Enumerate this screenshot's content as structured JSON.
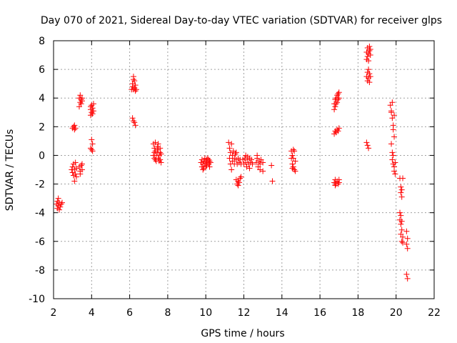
{
  "chart_data": {
    "type": "scatter",
    "title": "Day 070 of 2021, Sidereal Day-to-day VTEC variation (SDTVAR) for receiver glps",
    "xlabel": "GPS time / hours",
    "ylabel": "SDTVAR / TECUs",
    "xlim": [
      2,
      22
    ],
    "ylim": [
      -10,
      8
    ],
    "xticks": [
      "2",
      "4",
      "6",
      "8",
      "10",
      "12",
      "14",
      "16",
      "18",
      "20",
      "22"
    ],
    "yticks": [
      "8",
      "6",
      "4",
      "2",
      "0",
      "-2",
      "-4",
      "-6",
      "-8",
      "-10"
    ],
    "grid": true,
    "marker": "+",
    "color": "#ff0000",
    "series": [
      {
        "name": "SDTVAR",
        "points": [
          [
            2.15,
            -3.4
          ],
          [
            2.2,
            -3.2
          ],
          [
            2.2,
            -3.7
          ],
          [
            2.25,
            -3.5
          ],
          [
            2.3,
            -3.3
          ],
          [
            2.3,
            -3.8
          ],
          [
            2.35,
            -3.6
          ],
          [
            2.4,
            -3.4
          ],
          [
            2.45,
            -3.3
          ],
          [
            2.25,
            -3.0
          ],
          [
            2.95,
            -1.0
          ],
          [
            3.0,
            -1.2
          ],
          [
            3.0,
            -0.8
          ],
          [
            3.05,
            -1.4
          ],
          [
            3.05,
            -0.6
          ],
          [
            3.1,
            -1.8
          ],
          [
            3.1,
            -1.0
          ],
          [
            3.15,
            -0.5
          ],
          [
            3.15,
            -1.3
          ],
          [
            3.2,
            -0.9
          ],
          [
            3.2,
            -1.5
          ],
          [
            3.0,
            1.9
          ],
          [
            3.05,
            2.0
          ],
          [
            3.1,
            2.1
          ],
          [
            3.15,
            1.9
          ],
          [
            3.1,
            1.8
          ],
          [
            3.35,
            -0.8
          ],
          [
            3.4,
            -1.1
          ],
          [
            3.45,
            -0.7
          ],
          [
            3.5,
            -0.6
          ],
          [
            3.4,
            -1.3
          ],
          [
            3.5,
            -1.0
          ],
          [
            3.35,
            3.4
          ],
          [
            3.35,
            4.0
          ],
          [
            3.4,
            3.7
          ],
          [
            3.4,
            4.2
          ],
          [
            3.45,
            3.6
          ],
          [
            3.45,
            3.9
          ],
          [
            3.5,
            4.0
          ],
          [
            3.5,
            3.8
          ],
          [
            3.95,
            0.5
          ],
          [
            4.0,
            0.4
          ],
          [
            4.05,
            0.3
          ],
          [
            4.05,
            0.8
          ],
          [
            4.0,
            1.1
          ],
          [
            3.95,
            3.2
          ],
          [
            3.95,
            2.8
          ],
          [
            4.0,
            3.5
          ],
          [
            4.0,
            3.0
          ],
          [
            4.05,
            3.3
          ],
          [
            4.05,
            2.9
          ],
          [
            4.1,
            3.1
          ],
          [
            4.1,
            3.6
          ],
          [
            3.95,
            3.4
          ],
          [
            6.1,
            4.6
          ],
          [
            6.15,
            5.0
          ],
          [
            6.15,
            4.8
          ],
          [
            6.2,
            5.3
          ],
          [
            6.2,
            4.6
          ],
          [
            6.25,
            5.2
          ],
          [
            6.25,
            4.7
          ],
          [
            6.3,
            4.9
          ],
          [
            6.3,
            4.5
          ],
          [
            6.35,
            4.6
          ],
          [
            6.2,
            5.5
          ],
          [
            6.15,
            2.6
          ],
          [
            6.2,
            2.4
          ],
          [
            6.25,
            2.3
          ],
          [
            6.3,
            2.1
          ],
          [
            7.25,
            0.8
          ],
          [
            7.3,
            0.5
          ],
          [
            7.3,
            -0.2
          ],
          [
            7.35,
            0.3
          ],
          [
            7.35,
            0.9
          ],
          [
            7.4,
            0.0
          ],
          [
            7.4,
            -0.4
          ],
          [
            7.45,
            0.6
          ],
          [
            7.45,
            0.2
          ],
          [
            7.5,
            -0.2
          ],
          [
            7.5,
            0.4
          ],
          [
            7.55,
            0.0
          ],
          [
            7.55,
            -0.4
          ],
          [
            7.6,
            0.2
          ],
          [
            7.6,
            -0.3
          ],
          [
            7.65,
            0.1
          ],
          [
            7.65,
            -0.5
          ],
          [
            7.3,
            0.2
          ],
          [
            7.35,
            -0.3
          ],
          [
            7.5,
            0.8
          ],
          [
            7.25,
            0.0
          ],
          [
            7.6,
            0.5
          ],
          [
            9.75,
            -0.5
          ],
          [
            9.8,
            -0.8
          ],
          [
            9.8,
            -0.3
          ],
          [
            9.85,
            -1.0
          ],
          [
            9.85,
            -0.6
          ],
          [
            9.9,
            -0.4
          ],
          [
            9.9,
            -0.9
          ],
          [
            9.95,
            -0.2
          ],
          [
            9.95,
            -0.6
          ],
          [
            10.0,
            -0.4
          ],
          [
            10.0,
            -0.8
          ],
          [
            10.05,
            -0.3
          ],
          [
            10.05,
            -0.7
          ],
          [
            10.1,
            -0.5
          ],
          [
            10.1,
            -0.2
          ],
          [
            10.15,
            -0.6
          ],
          [
            10.15,
            -0.3
          ],
          [
            10.2,
            -0.4
          ],
          [
            10.2,
            -0.8
          ],
          [
            10.25,
            -0.5
          ],
          [
            11.2,
            0.9
          ],
          [
            11.25,
            0.5
          ],
          [
            11.25,
            -0.2
          ],
          [
            11.3,
            0.2
          ],
          [
            11.3,
            -0.6
          ],
          [
            11.35,
            0.8
          ],
          [
            11.35,
            -1.0
          ],
          [
            11.4,
            0.0
          ],
          [
            11.4,
            -0.4
          ],
          [
            11.45,
            0.3
          ],
          [
            11.5,
            -0.2
          ],
          [
            11.5,
            -0.6
          ],
          [
            11.55,
            0.1
          ],
          [
            11.6,
            -0.3
          ],
          [
            11.65,
            -0.6
          ],
          [
            11.7,
            -0.2
          ],
          [
            11.75,
            -0.5
          ],
          [
            11.8,
            -0.3
          ],
          [
            11.85,
            -0.6
          ],
          [
            11.6,
            0.2
          ],
          [
            11.6,
            -1.7
          ],
          [
            11.65,
            -2.0
          ],
          [
            11.7,
            -1.8
          ],
          [
            11.75,
            -1.9
          ],
          [
            11.8,
            -1.6
          ],
          [
            11.85,
            -1.5
          ],
          [
            11.7,
            -2.1
          ],
          [
            11.95,
            -0.3
          ],
          [
            12.0,
            -0.6
          ],
          [
            12.05,
            -0.2
          ],
          [
            12.1,
            -0.5
          ],
          [
            12.15,
            -0.8
          ],
          [
            12.2,
            -0.3
          ],
          [
            12.25,
            -0.6
          ],
          [
            12.3,
            -0.2
          ],
          [
            12.35,
            -0.5
          ],
          [
            12.4,
            -0.3
          ],
          [
            12.45,
            -0.6
          ],
          [
            12.1,
            0.0
          ],
          [
            12.3,
            -0.9
          ],
          [
            12.2,
            -0.1
          ],
          [
            12.65,
            -0.5
          ],
          [
            12.7,
            -0.2
          ],
          [
            12.7,
            0.0
          ],
          [
            12.75,
            -0.8
          ],
          [
            12.8,
            -0.4
          ],
          [
            12.85,
            -0.6
          ],
          [
            12.85,
            -1.0
          ],
          [
            12.9,
            -0.3
          ],
          [
            13.0,
            -0.5
          ],
          [
            13.0,
            -1.1
          ],
          [
            13.45,
            -0.7
          ],
          [
            13.5,
            -1.8
          ],
          [
            14.5,
            0.3
          ],
          [
            14.5,
            -0.2
          ],
          [
            14.55,
            0.0
          ],
          [
            14.55,
            -0.6
          ],
          [
            14.6,
            -0.8
          ],
          [
            14.6,
            -0.2
          ],
          [
            14.65,
            0.3
          ],
          [
            14.65,
            -1.0
          ],
          [
            14.7,
            -0.4
          ],
          [
            14.7,
            -1.1
          ],
          [
            14.6,
            0.4
          ],
          [
            14.55,
            -0.9
          ],
          [
            16.75,
            3.6
          ],
          [
            16.75,
            3.2
          ],
          [
            16.8,
            3.9
          ],
          [
            16.8,
            3.4
          ],
          [
            16.85,
            4.0
          ],
          [
            16.85,
            3.6
          ],
          [
            16.9,
            4.2
          ],
          [
            16.9,
            3.7
          ],
          [
            16.95,
            4.3
          ],
          [
            16.95,
            3.9
          ],
          [
            17.0,
            4.4
          ],
          [
            17.0,
            4.0
          ],
          [
            16.75,
            1.5
          ],
          [
            16.8,
            1.7
          ],
          [
            16.85,
            1.6
          ],
          [
            16.9,
            1.8
          ],
          [
            16.95,
            1.7
          ],
          [
            17.0,
            1.9
          ],
          [
            16.75,
            -1.9
          ],
          [
            16.8,
            -2.1
          ],
          [
            16.8,
            -1.7
          ],
          [
            16.85,
            -2.0
          ],
          [
            16.9,
            -1.8
          ],
          [
            16.95,
            -2.0
          ],
          [
            17.0,
            -1.9
          ],
          [
            17.0,
            -1.7
          ],
          [
            18.45,
            6.7
          ],
          [
            18.45,
            7.2
          ],
          [
            18.5,
            6.9
          ],
          [
            18.5,
            7.5
          ],
          [
            18.55,
            7.1
          ],
          [
            18.55,
            6.6
          ],
          [
            18.6,
            7.3
          ],
          [
            18.6,
            7.6
          ],
          [
            18.65,
            7.0
          ],
          [
            18.65,
            7.4
          ],
          [
            18.45,
            5.5
          ],
          [
            18.5,
            5.8
          ],
          [
            18.5,
            5.2
          ],
          [
            18.55,
            6.0
          ],
          [
            18.55,
            5.4
          ],
          [
            18.6,
            5.7
          ],
          [
            18.6,
            5.1
          ],
          [
            18.65,
            5.5
          ],
          [
            18.45,
            0.9
          ],
          [
            18.5,
            0.7
          ],
          [
            18.55,
            0.5
          ],
          [
            19.7,
            3.5
          ],
          [
            19.75,
            3.1
          ],
          [
            19.8,
            2.6
          ],
          [
            19.85,
            2.1
          ],
          [
            19.85,
            1.8
          ],
          [
            19.9,
            1.3
          ],
          [
            19.75,
            0.8
          ],
          [
            19.8,
            0.2
          ],
          [
            19.85,
            0.0
          ],
          [
            19.8,
            -0.3
          ],
          [
            19.85,
            -0.6
          ],
          [
            19.9,
            -0.8
          ],
          [
            19.9,
            -1.1
          ],
          [
            19.95,
            -0.5
          ],
          [
            19.75,
            3.0
          ],
          [
            19.8,
            3.7
          ],
          [
            19.9,
            2.8
          ],
          [
            19.95,
            -1.3
          ],
          [
            20.2,
            -1.6
          ],
          [
            20.25,
            -2.2
          ],
          [
            20.25,
            -2.6
          ],
          [
            20.3,
            -2.4
          ],
          [
            20.3,
            -2.9
          ],
          [
            20.35,
            -1.6
          ],
          [
            20.2,
            -4.0
          ],
          [
            20.2,
            -4.5
          ],
          [
            20.25,
            -4.8
          ],
          [
            20.25,
            -4.2
          ],
          [
            20.3,
            -5.2
          ],
          [
            20.3,
            -4.6
          ],
          [
            20.35,
            -5.7
          ],
          [
            20.35,
            -6.1
          ],
          [
            20.3,
            -6.0
          ],
          [
            20.25,
            -5.5
          ],
          [
            20.55,
            -5.3
          ],
          [
            20.55,
            -6.2
          ],
          [
            20.6,
            -6.5
          ],
          [
            20.6,
            -5.8
          ],
          [
            20.55,
            -8.3
          ],
          [
            20.6,
            -8.6
          ]
        ]
      }
    ]
  }
}
